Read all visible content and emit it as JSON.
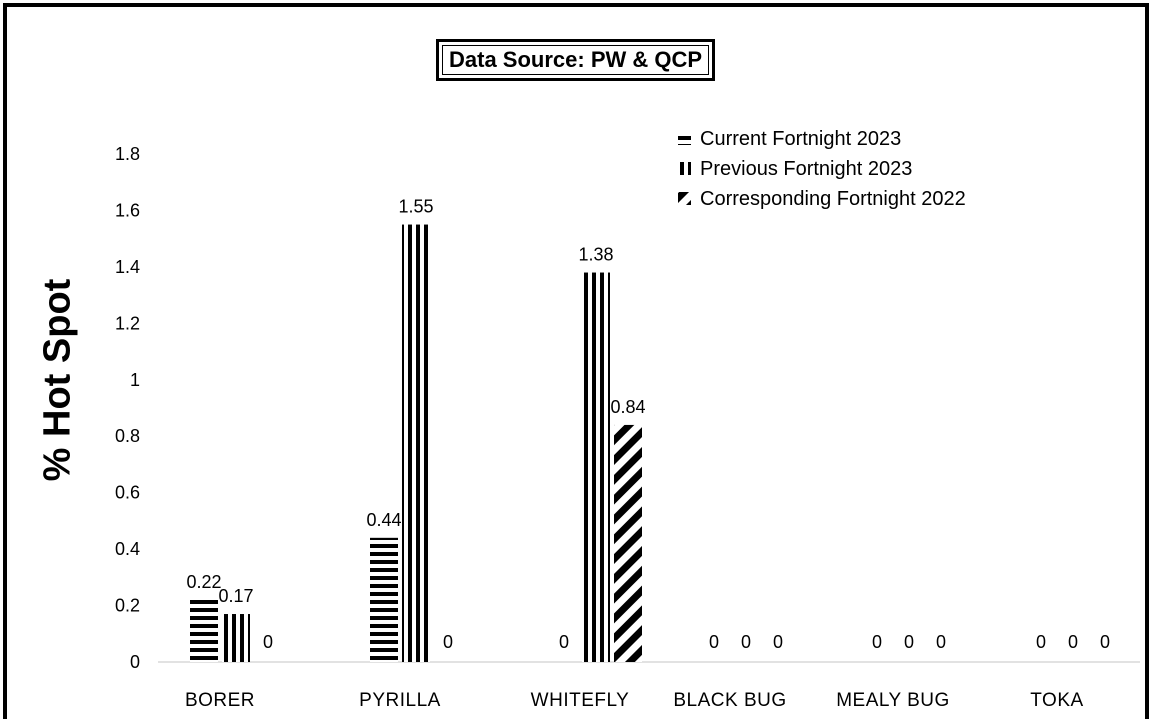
{
  "chart_data": {
    "type": "bar",
    "annotation": "Data Source: PW & QCP",
    "ylabel": "% Hot Spot",
    "xlabel": "",
    "ylim": [
      0,
      1.8
    ],
    "yticks": [
      "0",
      "0.2",
      "0.4",
      "0.6",
      "0.8",
      "1",
      "1.2",
      "1.4",
      "1.6",
      "1.8"
    ],
    "categories": [
      "BORER",
      "PYRILLA",
      "WHITEFLY",
      "BLACK BUG",
      "MEALY BUG",
      "TOKA"
    ],
    "series": [
      {
        "name": "Current Fortnight 2023",
        "values": [
          0.22,
          0.44,
          0,
          0,
          0,
          0
        ],
        "labels": [
          "0.22",
          "0.44",
          "0",
          "0",
          "0",
          "0"
        ],
        "pattern": "horizontal-stripes"
      },
      {
        "name": "Previous Fortnight 2023",
        "values": [
          0.17,
          1.55,
          1.38,
          0,
          0,
          0
        ],
        "labels": [
          "0.17",
          "1.55",
          "1.38",
          "0",
          "0",
          "0"
        ],
        "pattern": "vertical-stripes"
      },
      {
        "name": "Corresponding Fortnight 2022",
        "values": [
          0,
          0,
          0.84,
          0,
          0,
          0
        ],
        "labels": [
          "0",
          "0",
          "0.84",
          "0",
          "0",
          "0"
        ],
        "pattern": "diagonal-stripes"
      }
    ],
    "legend_position": "top-right",
    "grid": false,
    "colors": {
      "bar": "#000000",
      "background": "#ffffff",
      "axis": "#d9d9d9"
    }
  }
}
